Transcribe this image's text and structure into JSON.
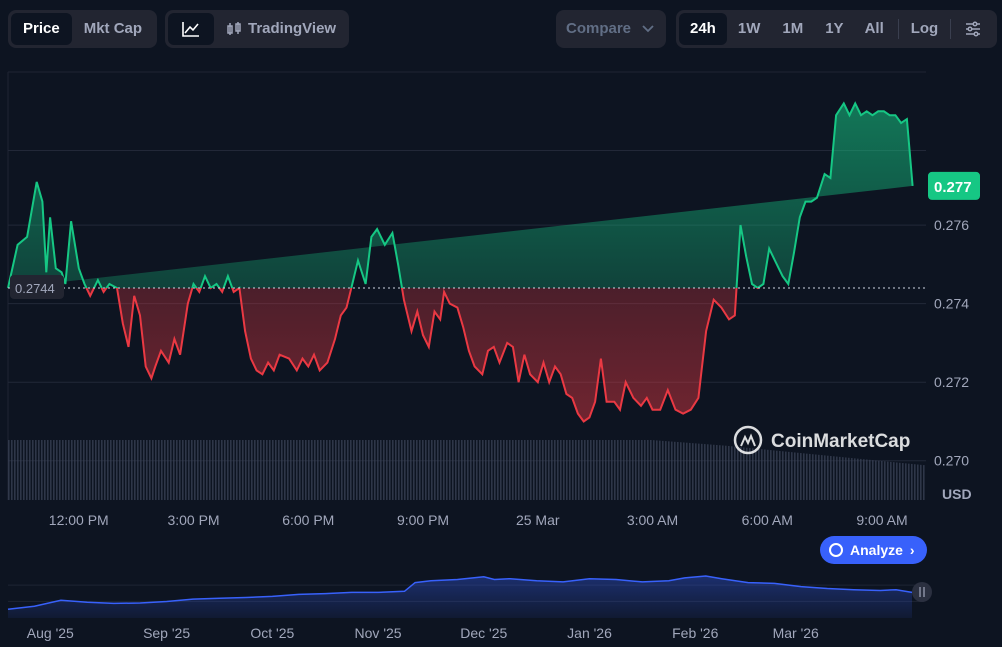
{
  "toolbar": {
    "type_tabs": [
      {
        "label": "Price",
        "active": true
      },
      {
        "label": "Mkt Cap",
        "active": false
      }
    ],
    "chart_buttons": [
      {
        "icon": "line-chart-icon"
      },
      {
        "icon": "candlestick-icon",
        "label": "TradingView"
      }
    ],
    "compare_label": "Compare",
    "ranges": [
      {
        "label": "24h",
        "active": true
      },
      {
        "label": "1W",
        "active": false
      },
      {
        "label": "1M",
        "active": false
      },
      {
        "label": "1Y",
        "active": false
      },
      {
        "label": "All",
        "active": false
      }
    ],
    "log_label": "Log",
    "settings_icon": "sliders-icon"
  },
  "watermark": "CoinMarketCap",
  "analyze_label": "Analyze",
  "currency_label": "USD",
  "colors": {
    "up": "#16c784",
    "down": "#ea3943",
    "accent": "#3861fb",
    "background": "#0d1421"
  },
  "chart_data": [
    {
      "type": "line",
      "ylim": [
        0.269,
        0.2799
      ],
      "yticks": [
        "0.270",
        "0.272",
        "0.274",
        "0.276"
      ],
      "xticks": [
        "12:00 PM",
        "3:00 PM",
        "6:00 PM",
        "9:00 PM",
        "25 Mar",
        "3:00 AM",
        "6:00 AM",
        "9:00 AM"
      ],
      "xtick_hours": [
        0,
        3,
        6,
        9,
        12,
        15,
        18,
        21
      ],
      "x_range_hours": [
        -1.85,
        22.15
      ],
      "baseline": {
        "value": 0.2744,
        "label": "0.2744"
      },
      "current": {
        "value": 0.277,
        "label": "0.277"
      },
      "grid": true,
      "x_hours": [
        -1.85,
        -1.6,
        -1.35,
        -1.1,
        -0.95,
        -0.85,
        -0.75,
        -0.6,
        -0.45,
        -0.35,
        -0.2,
        0.0,
        0.15,
        0.3,
        0.5,
        0.65,
        0.8,
        1.0,
        1.15,
        1.3,
        1.45,
        1.6,
        1.75,
        1.9,
        2.0,
        2.15,
        2.35,
        2.5,
        2.65,
        2.85,
        3.0,
        3.15,
        3.3,
        3.45,
        3.6,
        3.75,
        3.9,
        4.05,
        4.2,
        4.35,
        4.5,
        4.65,
        4.8,
        4.95,
        5.1,
        5.25,
        5.5,
        5.7,
        5.85,
        6.0,
        6.15,
        6.3,
        6.5,
        6.7,
        6.85,
        7.0,
        7.15,
        7.3,
        7.5,
        7.65,
        7.8,
        8.0,
        8.2,
        8.35,
        8.5,
        8.7,
        8.85,
        9.0,
        9.15,
        9.3,
        9.45,
        9.55,
        9.7,
        9.9,
        10.05,
        10.2,
        10.35,
        10.55,
        10.7,
        10.85,
        11.0,
        11.2,
        11.35,
        11.5,
        11.65,
        11.8,
        12.0,
        12.15,
        12.3,
        12.45,
        12.6,
        12.75,
        12.9,
        13.05,
        13.2,
        13.35,
        13.5,
        13.65,
        13.8,
        14.0,
        14.15,
        14.3,
        14.5,
        14.7,
        14.85,
        15.0,
        15.2,
        15.4,
        15.6,
        15.8,
        16.0,
        16.2,
        16.4,
        16.6,
        16.8,
        17.0,
        17.15,
        17.3,
        17.45,
        17.6,
        17.75,
        17.9,
        18.05,
        18.2,
        18.4,
        18.55,
        18.7,
        18.85,
        19.0,
        19.15,
        19.3,
        19.5,
        19.65,
        19.8,
        20.0,
        20.15,
        20.3,
        20.45,
        20.6,
        20.75,
        20.9,
        21.05,
        21.2,
        21.35,
        21.5,
        21.65,
        21.8,
        21.95,
        22.1
      ],
      "price": [
        0.2744,
        0.2755,
        0.2757,
        0.2771,
        0.2766,
        0.2748,
        0.2762,
        0.2749,
        0.2748,
        0.2745,
        0.2761,
        0.2749,
        0.2745,
        0.2742,
        0.2746,
        0.2743,
        0.2745,
        0.2744,
        0.2735,
        0.2729,
        0.2742,
        0.2737,
        0.2724,
        0.2721,
        0.2724,
        0.2728,
        0.2725,
        0.2731,
        0.2727,
        0.274,
        0.2745,
        0.2743,
        0.2747,
        0.2744,
        0.2745,
        0.2743,
        0.2747,
        0.2743,
        0.2744,
        0.2733,
        0.2726,
        0.2723,
        0.2722,
        0.2725,
        0.2723,
        0.2727,
        0.2726,
        0.2723,
        0.2726,
        0.2724,
        0.2727,
        0.2723,
        0.2725,
        0.2731,
        0.2737,
        0.2739,
        0.2745,
        0.2751,
        0.2745,
        0.2757,
        0.2759,
        0.2755,
        0.2758,
        0.275,
        0.2741,
        0.2733,
        0.2738,
        0.2732,
        0.2729,
        0.2738,
        0.2736,
        0.2743,
        0.274,
        0.2739,
        0.2734,
        0.2728,
        0.2724,
        0.2722,
        0.2728,
        0.2729,
        0.2725,
        0.273,
        0.2729,
        0.272,
        0.2727,
        0.2722,
        0.272,
        0.2725,
        0.272,
        0.2724,
        0.2722,
        0.2717,
        0.2716,
        0.2712,
        0.271,
        0.2711,
        0.2715,
        0.2726,
        0.2715,
        0.2715,
        0.2713,
        0.272,
        0.2716,
        0.2714,
        0.2716,
        0.2713,
        0.2713,
        0.2718,
        0.2713,
        0.2712,
        0.2713,
        0.2716,
        0.2733,
        0.2741,
        0.2739,
        0.2736,
        0.2737,
        0.276,
        0.2752,
        0.2745,
        0.2744,
        0.2745,
        0.2754,
        0.2751,
        0.2747,
        0.2745,
        0.2753,
        0.2762,
        0.2766,
        0.2766,
        0.2767,
        0.2773,
        0.2772,
        0.2788,
        0.2791,
        0.2788,
        0.2791,
        0.2788,
        0.2789,
        0.2788,
        0.2789,
        0.2789,
        0.2788,
        0.2788,
        0.2786,
        0.2787,
        0.277
      ]
    },
    {
      "type": "area",
      "title": "",
      "xticks": [
        "Aug '25",
        "Sep '25",
        "Oct '25",
        "Nov '25",
        "Dec '25",
        "Jan '26",
        "Feb '26",
        "Mar '26"
      ],
      "x_month": [
        0.0,
        0.25,
        0.5,
        0.75,
        1.0,
        1.25,
        1.5,
        1.75,
        2.0,
        2.25,
        2.5,
        2.75,
        3.0,
        3.25,
        3.5,
        3.75,
        3.85,
        4.0,
        4.25,
        4.5,
        4.6,
        4.75,
        5.0,
        5.25,
        5.5,
        5.75,
        6.0,
        6.25,
        6.4,
        6.6,
        6.75,
        7.0,
        7.25,
        7.5,
        7.75,
        8.0,
        8.25,
        8.4,
        8.55
      ],
      "level": [
        0.12,
        0.2,
        0.35,
        0.3,
        0.27,
        0.28,
        0.32,
        0.38,
        0.4,
        0.42,
        0.45,
        0.5,
        0.52,
        0.55,
        0.55,
        0.58,
        0.8,
        0.85,
        0.88,
        0.95,
        0.88,
        0.9,
        0.85,
        0.82,
        0.9,
        0.88,
        0.82,
        0.85,
        0.92,
        0.97,
        0.9,
        0.8,
        0.78,
        0.7,
        0.65,
        0.62,
        0.6,
        0.62,
        0.55
      ]
    }
  ]
}
